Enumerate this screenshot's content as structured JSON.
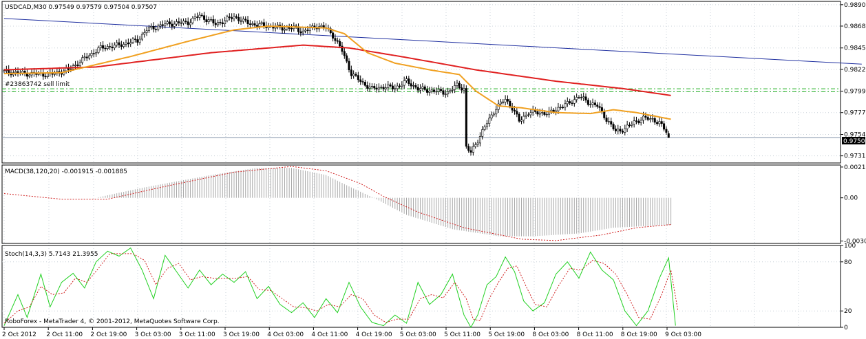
{
  "window": {
    "header": "USDCAD,M30  0.97549 0.97579 0.97504 0.97507",
    "order_label": "#23863742 sell limit",
    "current_price": "0.97507",
    "copyright": "RoboForex - MetaTrader 4, © 2001-2012, MetaQuotes Software Corp."
  },
  "colors": {
    "background": "#ffffff",
    "grid": "#c8d0d8",
    "candles": "#000000",
    "ma_fast": "#f0a020",
    "ma_slow": "#e02020",
    "trendline": "#2030a0",
    "order_line": "#20b020",
    "bid_line": "#8090a8",
    "macd_hist": "#a8a8a8",
    "macd_signal": "#d02020",
    "stoch_main": "#20d020",
    "stoch_signal": "#d02020"
  },
  "chart_data": [
    {
      "type": "candlestick",
      "symbol": "USDCAD",
      "timeframe": "M30",
      "ohlc_last": {
        "open": 0.97549,
        "high": 0.97579,
        "low": 0.97504,
        "close": 0.97507
      },
      "ylim": [
        0.9724,
        0.9894
      ],
      "y_ticks": [
        "0.98905",
        "0.98680",
        "0.98450",
        "0.98225",
        "0.97995",
        "0.97770",
        "0.97540",
        "0.97315"
      ],
      "x_ticks": [
        "2 Oct 2012",
        "2 Oct 11:00",
        "2 Oct 19:00",
        "3 Oct 03:00",
        "3 Oct 11:00",
        "3 Oct 19:00",
        "4 Oct 03:00",
        "4 Oct 11:00",
        "4 Oct 19:00",
        "5 Oct 03:00",
        "5 Oct 11:00",
        "5 Oct 19:00",
        "8 Oct 03:00",
        "8 Oct 11:00",
        "8 Oct 19:00",
        "9 Oct 03:00"
      ],
      "price_path": [
        [
          0,
          0.982
        ],
        [
          10,
          0.9818
        ],
        [
          20,
          0.9817
        ],
        [
          28,
          0.9822
        ],
        [
          35,
          0.9834
        ],
        [
          42,
          0.9845
        ],
        [
          50,
          0.9848
        ],
        [
          58,
          0.9853
        ],
        [
          62,
          0.9864
        ],
        [
          70,
          0.987
        ],
        [
          80,
          0.9872
        ],
        [
          85,
          0.9879
        ],
        [
          92,
          0.987
        ],
        [
          100,
          0.9878
        ],
        [
          104,
          0.9873
        ],
        [
          108,
          0.987
        ],
        [
          115,
          0.9868
        ],
        [
          120,
          0.9866
        ],
        [
          126,
          0.9866
        ],
        [
          130,
          0.9862
        ],
        [
          136,
          0.9868
        ],
        [
          140,
          0.9866
        ],
        [
          143,
          0.9858
        ],
        [
          147,
          0.9842
        ],
        [
          151,
          0.9818
        ],
        [
          156,
          0.9808
        ],
        [
          160,
          0.9802
        ],
        [
          165,
          0.9804
        ],
        [
          170,
          0.9803
        ],
        [
          175,
          0.981
        ],
        [
          180,
          0.9802
        ],
        [
          186,
          0.98
        ],
        [
          193,
          0.9798
        ],
        [
          197,
          0.9806
        ],
        [
          200,
          0.9802
        ],
        [
          201,
          0.974
        ],
        [
          203,
          0.9735
        ],
        [
          206,
          0.9748
        ],
        [
          210,
          0.9766
        ],
        [
          214,
          0.9782
        ],
        [
          218,
          0.9791
        ],
        [
          221,
          0.9782
        ],
        [
          224,
          0.9768
        ],
        [
          228,
          0.9777
        ],
        [
          233,
          0.9777
        ],
        [
          237,
          0.9776
        ],
        [
          241,
          0.9782
        ],
        [
          245,
          0.9786
        ],
        [
          250,
          0.9794
        ],
        [
          254,
          0.9788
        ],
        [
          258,
          0.9784
        ],
        [
          262,
          0.977
        ],
        [
          266,
          0.9757
        ],
        [
          270,
          0.976
        ],
        [
          274,
          0.9767
        ],
        [
          278,
          0.9771
        ],
        [
          282,
          0.977
        ],
        [
          285,
          0.9766
        ],
        [
          288,
          0.9757
        ],
        [
          289,
          0.97507
        ]
      ],
      "ma_fast_path": [
        [
          0,
          0.9818
        ],
        [
          25,
          0.9819
        ],
        [
          55,
          0.9836
        ],
        [
          80,
          0.9852
        ],
        [
          100,
          0.9864
        ],
        [
          115,
          0.9868
        ],
        [
          140,
          0.9866
        ],
        [
          148,
          0.986
        ],
        [
          158,
          0.984
        ],
        [
          170,
          0.9829
        ],
        [
          185,
          0.9822
        ],
        [
          198,
          0.9817
        ],
        [
          205,
          0.98
        ],
        [
          215,
          0.9784
        ],
        [
          225,
          0.9782
        ],
        [
          240,
          0.9777
        ],
        [
          255,
          0.9776
        ],
        [
          265,
          0.978
        ],
        [
          275,
          0.9777
        ],
        [
          290,
          0.977
        ]
      ],
      "ma_slow_path": [
        [
          0,
          0.9822
        ],
        [
          40,
          0.9825
        ],
        [
          90,
          0.984
        ],
        [
          130,
          0.9848
        ],
        [
          150,
          0.9845
        ],
        [
          175,
          0.9835
        ],
        [
          205,
          0.9822
        ],
        [
          240,
          0.981
        ],
        [
          270,
          0.9802
        ],
        [
          290,
          0.9795
        ]
      ],
      "trendline": [
        [
          0,
          0.9876
        ],
        [
          373,
          0.9828
        ]
      ],
      "order_levels": [
        0.9802,
        0.9799
      ],
      "current_price": 0.97507
    },
    {
      "type": "histogram",
      "indicator": "MACD",
      "label": "MACD(38,120,20) -0.001915 -0.001885",
      "ylim": [
        -0.0032,
        0.0023
      ],
      "y_ticks": [
        "0.00216",
        "0.00",
        "-0.00303"
      ],
      "histogram_path": [
        [
          0,
          0.0
        ],
        [
          40,
          0.0
        ],
        [
          60,
          0.0007
        ],
        [
          90,
          0.0016
        ],
        [
          110,
          0.0021
        ],
        [
          125,
          0.0021
        ],
        [
          140,
          0.0016
        ],
        [
          150,
          0.0008
        ],
        [
          162,
          -0.0001
        ],
        [
          175,
          -0.0012
        ],
        [
          195,
          -0.0022
        ],
        [
          215,
          -0.0027
        ],
        [
          230,
          -0.0027
        ],
        [
          250,
          -0.0025
        ],
        [
          265,
          -0.0021
        ],
        [
          290,
          -0.0019
        ]
      ],
      "signal_path": [
        [
          0,
          0.0003
        ],
        [
          25,
          -0.0001
        ],
        [
          45,
          -0.0001
        ],
        [
          70,
          0.0008
        ],
        [
          100,
          0.0018
        ],
        [
          125,
          0.0022
        ],
        [
          140,
          0.0019
        ],
        [
          155,
          0.001
        ],
        [
          165,
          0.0001
        ],
        [
          180,
          -0.001
        ],
        [
          200,
          -0.0021
        ],
        [
          225,
          -0.0029
        ],
        [
          240,
          -0.003
        ],
        [
          260,
          -0.0026
        ],
        [
          275,
          -0.0021
        ],
        [
          290,
          -0.00188
        ]
      ]
    },
    {
      "type": "line",
      "indicator": "Stochastic",
      "label": "Stoch(14,3,3) 5.7143 21.3955",
      "ylim": [
        0,
        100
      ],
      "y_ticks": [
        "100",
        "80",
        "20",
        "0"
      ],
      "series": [
        {
          "name": "main",
          "points": [
            [
              0,
              2
            ],
            [
              6,
              40
            ],
            [
              10,
              12
            ],
            [
              16,
              65
            ],
            [
              20,
              25
            ],
            [
              25,
              55
            ],
            [
              30,
              66
            ],
            [
              35,
              48
            ],
            [
              40,
              80
            ],
            [
              45,
              93
            ],
            [
              50,
              87
            ],
            [
              55,
              97
            ],
            [
              60,
              70
            ],
            [
              65,
              35
            ],
            [
              70,
              88
            ],
            [
              75,
              68
            ],
            [
              80,
              48
            ],
            [
              85,
              70
            ],
            [
              90,
              52
            ],
            [
              95,
              65
            ],
            [
              100,
              55
            ],
            [
              105,
              68
            ],
            [
              110,
              35
            ],
            [
              115,
              50
            ],
            [
              120,
              28
            ],
            [
              125,
              18
            ],
            [
              130,
              30
            ],
            [
              135,
              12
            ],
            [
              140,
              35
            ],
            [
              145,
              18
            ],
            [
              150,
              55
            ],
            [
              155,
              25
            ],
            [
              160,
              6
            ],
            [
              165,
              2
            ],
            [
              170,
              15
            ],
            [
              175,
              5
            ],
            [
              180,
              55
            ],
            [
              185,
              28
            ],
            [
              190,
              40
            ],
            [
              195,
              65
            ],
            [
              200,
              15
            ],
            [
              203,
              0
            ],
            [
              206,
              15
            ],
            [
              210,
              52
            ],
            [
              214,
              62
            ],
            [
              218,
              86
            ],
            [
              222,
              68
            ],
            [
              226,
              32
            ],
            [
              230,
              20
            ],
            [
              235,
              30
            ],
            [
              240,
              65
            ],
            [
              245,
              80
            ],
            [
              250,
              60
            ],
            [
              255,
              92
            ],
            [
              260,
              70
            ],
            [
              265,
              58
            ],
            [
              270,
              20
            ],
            [
              275,
              2
            ],
            [
              280,
              20
            ],
            [
              285,
              60
            ],
            [
              289,
              85
            ],
            [
              292,
              2
            ]
          ]
        },
        {
          "name": "signal",
          "points": [
            [
              0,
              5
            ],
            [
              6,
              20
            ],
            [
              11,
              25
            ],
            [
              16,
              50
            ],
            [
              21,
              40
            ],
            [
              26,
              42
            ],
            [
              31,
              60
            ],
            [
              36,
              55
            ],
            [
              41,
              72
            ],
            [
              46,
              90
            ],
            [
              51,
              90
            ],
            [
              56,
              90
            ],
            [
              61,
              82
            ],
            [
              66,
              52
            ],
            [
              71,
              72
            ],
            [
              76,
              78
            ],
            [
              81,
              58
            ],
            [
              86,
              62
            ],
            [
              91,
              60
            ],
            [
              96,
              60
            ],
            [
              101,
              60
            ],
            [
              106,
              62
            ],
            [
              111,
              46
            ],
            [
              116,
              45
            ],
            [
              121,
              35
            ],
            [
              126,
              25
            ],
            [
              131,
              24
            ],
            [
              136,
              20
            ],
            [
              141,
              28
            ],
            [
              146,
              25
            ],
            [
              151,
              40
            ],
            [
              156,
              35
            ],
            [
              161,
              15
            ],
            [
              166,
              6
            ],
            [
              171,
              10
            ],
            [
              176,
              10
            ],
            [
              181,
              35
            ],
            [
              186,
              40
            ],
            [
              191,
              36
            ],
            [
              196,
              55
            ],
            [
              201,
              35
            ],
            [
              204,
              10
            ],
            [
              207,
              8
            ],
            [
              211,
              35
            ],
            [
              215,
              55
            ],
            [
              219,
              72
            ],
            [
              223,
              75
            ],
            [
              227,
              50
            ],
            [
              231,
              28
            ],
            [
              236,
              25
            ],
            [
              241,
              50
            ],
            [
              246,
              72
            ],
            [
              251,
              70
            ],
            [
              256,
              82
            ],
            [
              261,
              78
            ],
            [
              266,
              65
            ],
            [
              271,
              40
            ],
            [
              276,
              12
            ],
            [
              281,
              10
            ],
            [
              286,
              40
            ],
            [
              290,
              70
            ],
            [
              293,
              21
            ]
          ]
        }
      ]
    }
  ]
}
